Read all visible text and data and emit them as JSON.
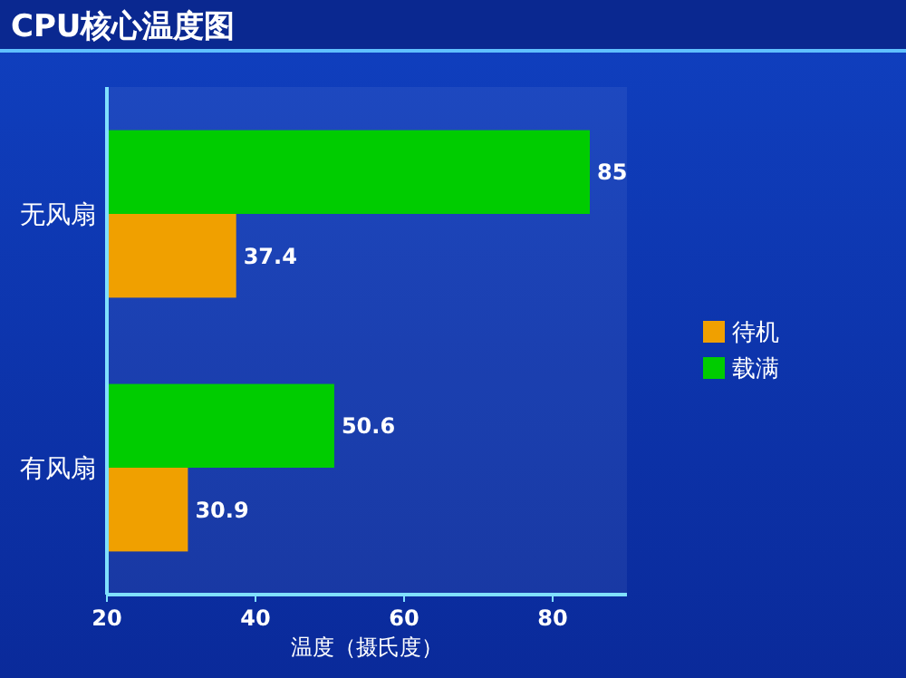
{
  "chart_data": {
    "type": "bar",
    "orientation": "horizontal",
    "title": "CPU核心温度图",
    "xlabel": "温度（摄氏度）",
    "categories": [
      "无风扇",
      "有风扇"
    ],
    "series": [
      {
        "name": "待机",
        "color": "#f0a000",
        "values": [
          37.4,
          30.9
        ]
      },
      {
        "name": "载满",
        "color": "#00cc00",
        "values": [
          85,
          50.6
        ]
      }
    ],
    "xlim": [
      20,
      90
    ],
    "xticks": [
      20,
      40,
      60,
      80
    ],
    "data_labels": true,
    "legend": "right"
  }
}
